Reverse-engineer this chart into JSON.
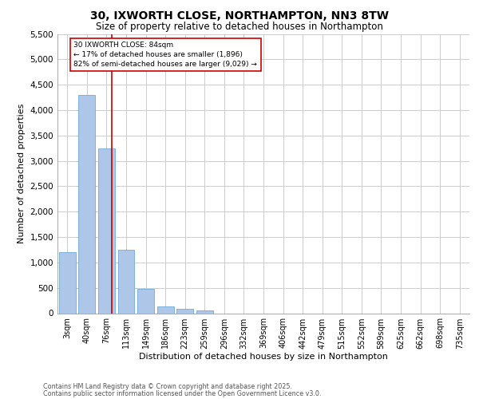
{
  "title_line1": "30, IXWORTH CLOSE, NORTHAMPTON, NN3 8TW",
  "title_line2": "Size of property relative to detached houses in Northampton",
  "xlabel": "Distribution of detached houses by size in Northampton",
  "ylabel": "Number of detached properties",
  "bar_categories": [
    "3sqm",
    "40sqm",
    "76sqm",
    "113sqm",
    "149sqm",
    "186sqm",
    "223sqm",
    "259sqm",
    "296sqm",
    "332sqm",
    "369sqm",
    "406sqm",
    "442sqm",
    "479sqm",
    "515sqm",
    "552sqm",
    "589sqm",
    "625sqm",
    "662sqm",
    "698sqm",
    "735sqm"
  ],
  "bar_values": [
    1200,
    4300,
    3250,
    1250,
    480,
    130,
    90,
    60,
    0,
    0,
    0,
    0,
    0,
    0,
    0,
    0,
    0,
    0,
    0,
    0,
    0
  ],
  "bar_color": "#aec6e8",
  "bar_edgecolor": "#5a9fd4",
  "ylim": [
    0,
    5500
  ],
  "yticks": [
    0,
    500,
    1000,
    1500,
    2000,
    2500,
    3000,
    3500,
    4000,
    4500,
    5000,
    5500
  ],
  "property_line_x": 2.27,
  "property_line_color": "#cc0000",
  "annotation_text": "30 IXWORTH CLOSE: 84sqm\n← 17% of detached houses are smaller (1,896)\n82% of semi-detached houses are larger (9,029) →",
  "annotation_box_color": "#ffffff",
  "annotation_box_edgecolor": "#cc0000",
  "footer_line1": "Contains HM Land Registry data © Crown copyright and database right 2025.",
  "footer_line2": "Contains public sector information licensed under the Open Government Licence v3.0.",
  "background_color": "#ffffff",
  "grid_color": "#cccccc"
}
